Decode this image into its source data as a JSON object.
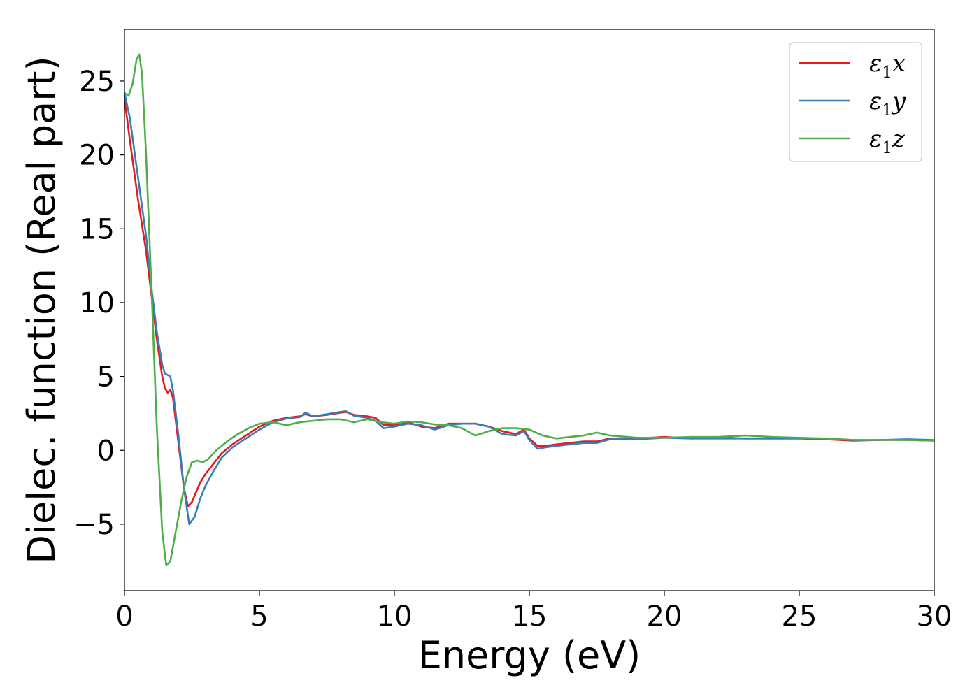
{
  "chart_data": {
    "type": "line",
    "xlabel": "Energy (eV)",
    "ylabel": "Dielec. function (Real part)",
    "xlim": [
      0,
      30
    ],
    "ylim": [
      -9.5,
      28.5
    ],
    "xticks": [
      0,
      5,
      10,
      15,
      20,
      25,
      30
    ],
    "xtick_labels": [
      "0",
      "5",
      "10",
      "15",
      "20",
      "25",
      "30"
    ],
    "yticks": [
      -5,
      0,
      5,
      10,
      15,
      20,
      25
    ],
    "ytick_labels": [
      "−5",
      "0",
      "5",
      "10",
      "15",
      "20",
      "25"
    ],
    "grid": false,
    "legend_position": "top-right",
    "series": [
      {
        "name": "ε1x",
        "legend": {
          "base": "ε",
          "sub": "1",
          "tail": "x"
        },
        "color": "#e41a1c",
        "x": [
          0,
          0.2,
          0.5,
          0.8,
          1.0,
          1.2,
          1.4,
          1.5,
          1.6,
          1.7,
          1.8,
          2.0,
          2.2,
          2.35,
          2.5,
          2.8,
          3.0,
          3.3,
          3.6,
          4.0,
          4.5,
          5.0,
          5.5,
          6.0,
          6.5,
          6.7,
          7.0,
          7.5,
          8.0,
          8.2,
          8.5,
          9.0,
          9.3,
          9.6,
          10.0,
          10.5,
          11.0,
          11.5,
          12.0,
          12.5,
          13.0,
          13.5,
          14.0,
          14.5,
          14.8,
          15.0,
          15.3,
          15.6,
          16.0,
          16.5,
          17.0,
          17.5,
          18.0,
          19.0,
          20.0,
          21.0,
          22.0,
          23.0,
          24.0,
          25.0,
          26.0,
          27.0,
          28.0,
          29.0,
          30.0
        ],
        "values": [
          23.8,
          21.0,
          17.0,
          13.5,
          10.5,
          7.5,
          5.0,
          4.2,
          3.9,
          4.1,
          3.5,
          0.5,
          -2.5,
          -3.8,
          -3.5,
          -2.2,
          -1.6,
          -0.9,
          -0.2,
          0.4,
          1.0,
          1.6,
          2.0,
          2.2,
          2.3,
          2.45,
          2.3,
          2.4,
          2.55,
          2.6,
          2.4,
          2.3,
          2.2,
          1.7,
          1.7,
          1.9,
          1.6,
          1.5,
          1.8,
          1.8,
          1.8,
          1.6,
          1.3,
          1.1,
          1.4,
          0.8,
          0.3,
          0.3,
          0.4,
          0.5,
          0.6,
          0.6,
          0.8,
          0.8,
          0.9,
          0.8,
          0.85,
          0.8,
          0.8,
          0.8,
          0.75,
          0.65,
          0.7,
          0.7,
          0.65
        ]
      },
      {
        "name": "ε1y",
        "legend": {
          "base": "ε",
          "sub": "1",
          "tail": "y"
        },
        "color": "#377eb8",
        "x": [
          0,
          0.2,
          0.5,
          0.8,
          1.0,
          1.2,
          1.4,
          1.5,
          1.6,
          1.7,
          1.8,
          2.0,
          2.2,
          2.4,
          2.6,
          2.8,
          3.0,
          3.3,
          3.6,
          4.0,
          4.5,
          5.0,
          5.5,
          6.0,
          6.5,
          6.7,
          7.0,
          7.5,
          8.0,
          8.2,
          8.5,
          9.0,
          9.3,
          9.6,
          10.0,
          10.5,
          11.0,
          11.5,
          12.0,
          12.5,
          13.0,
          13.5,
          14.0,
          14.5,
          14.8,
          15.0,
          15.3,
          15.6,
          16.0,
          16.5,
          17.0,
          17.5,
          18.0,
          19.0,
          20.0,
          21.0,
          22.0,
          23.0,
          24.0,
          25.0,
          26.0,
          27.0,
          28.0,
          29.0,
          30.0
        ],
        "values": [
          24.2,
          22.5,
          18.5,
          14.5,
          11.0,
          8.0,
          5.8,
          5.2,
          5.1,
          5.0,
          4.0,
          1.0,
          -2.5,
          -5.0,
          -4.5,
          -3.3,
          -2.4,
          -1.4,
          -0.5,
          0.2,
          0.8,
          1.4,
          1.9,
          2.15,
          2.25,
          2.55,
          2.3,
          2.45,
          2.6,
          2.65,
          2.35,
          2.2,
          2.0,
          1.5,
          1.6,
          1.8,
          1.7,
          1.4,
          1.7,
          1.8,
          1.8,
          1.6,
          1.1,
          1.0,
          1.3,
          0.7,
          0.1,
          0.2,
          0.3,
          0.4,
          0.5,
          0.5,
          0.75,
          0.75,
          0.85,
          0.8,
          0.8,
          0.8,
          0.8,
          0.8,
          0.8,
          0.7,
          0.7,
          0.75,
          0.7
        ]
      },
      {
        "name": "ε1z",
        "legend": {
          "base": "ε",
          "sub": "1",
          "tail": "z"
        },
        "color": "#4daf4a",
        "x": [
          0,
          0.15,
          0.3,
          0.45,
          0.55,
          0.65,
          0.8,
          1.0,
          1.2,
          1.4,
          1.55,
          1.7,
          1.9,
          2.1,
          2.3,
          2.5,
          2.7,
          2.9,
          3.1,
          3.4,
          3.8,
          4.2,
          4.6,
          5.0,
          5.5,
          6.0,
          6.5,
          7.0,
          7.5,
          8.0,
          8.5,
          9.0,
          9.5,
          10.0,
          10.5,
          11.0,
          11.5,
          12.0,
          12.5,
          13.0,
          13.5,
          14.0,
          14.5,
          15.0,
          15.5,
          16.0,
          16.5,
          17.0,
          17.5,
          18.0,
          19.0,
          20.0,
          21.0,
          22.0,
          23.0,
          24.0,
          25.0,
          26.0,
          27.0,
          28.0,
          29.0,
          30.0
        ],
        "values": [
          24.2,
          24.0,
          24.8,
          26.5,
          26.8,
          25.5,
          20.0,
          11.0,
          1.5,
          -5.5,
          -7.8,
          -7.5,
          -5.5,
          -3.5,
          -1.8,
          -0.8,
          -0.7,
          -0.8,
          -0.6,
          0.0,
          0.6,
          1.1,
          1.5,
          1.8,
          1.9,
          1.7,
          1.9,
          2.0,
          2.1,
          2.1,
          1.9,
          2.1,
          1.9,
          1.8,
          1.95,
          1.9,
          1.75,
          1.7,
          1.5,
          1.0,
          1.3,
          1.5,
          1.5,
          1.4,
          1.0,
          0.8,
          0.9,
          1.0,
          1.2,
          1.0,
          0.85,
          0.85,
          0.9,
          0.9,
          1.0,
          0.9,
          0.85,
          0.8,
          0.7,
          0.7,
          0.7,
          0.65
        ]
      }
    ]
  }
}
